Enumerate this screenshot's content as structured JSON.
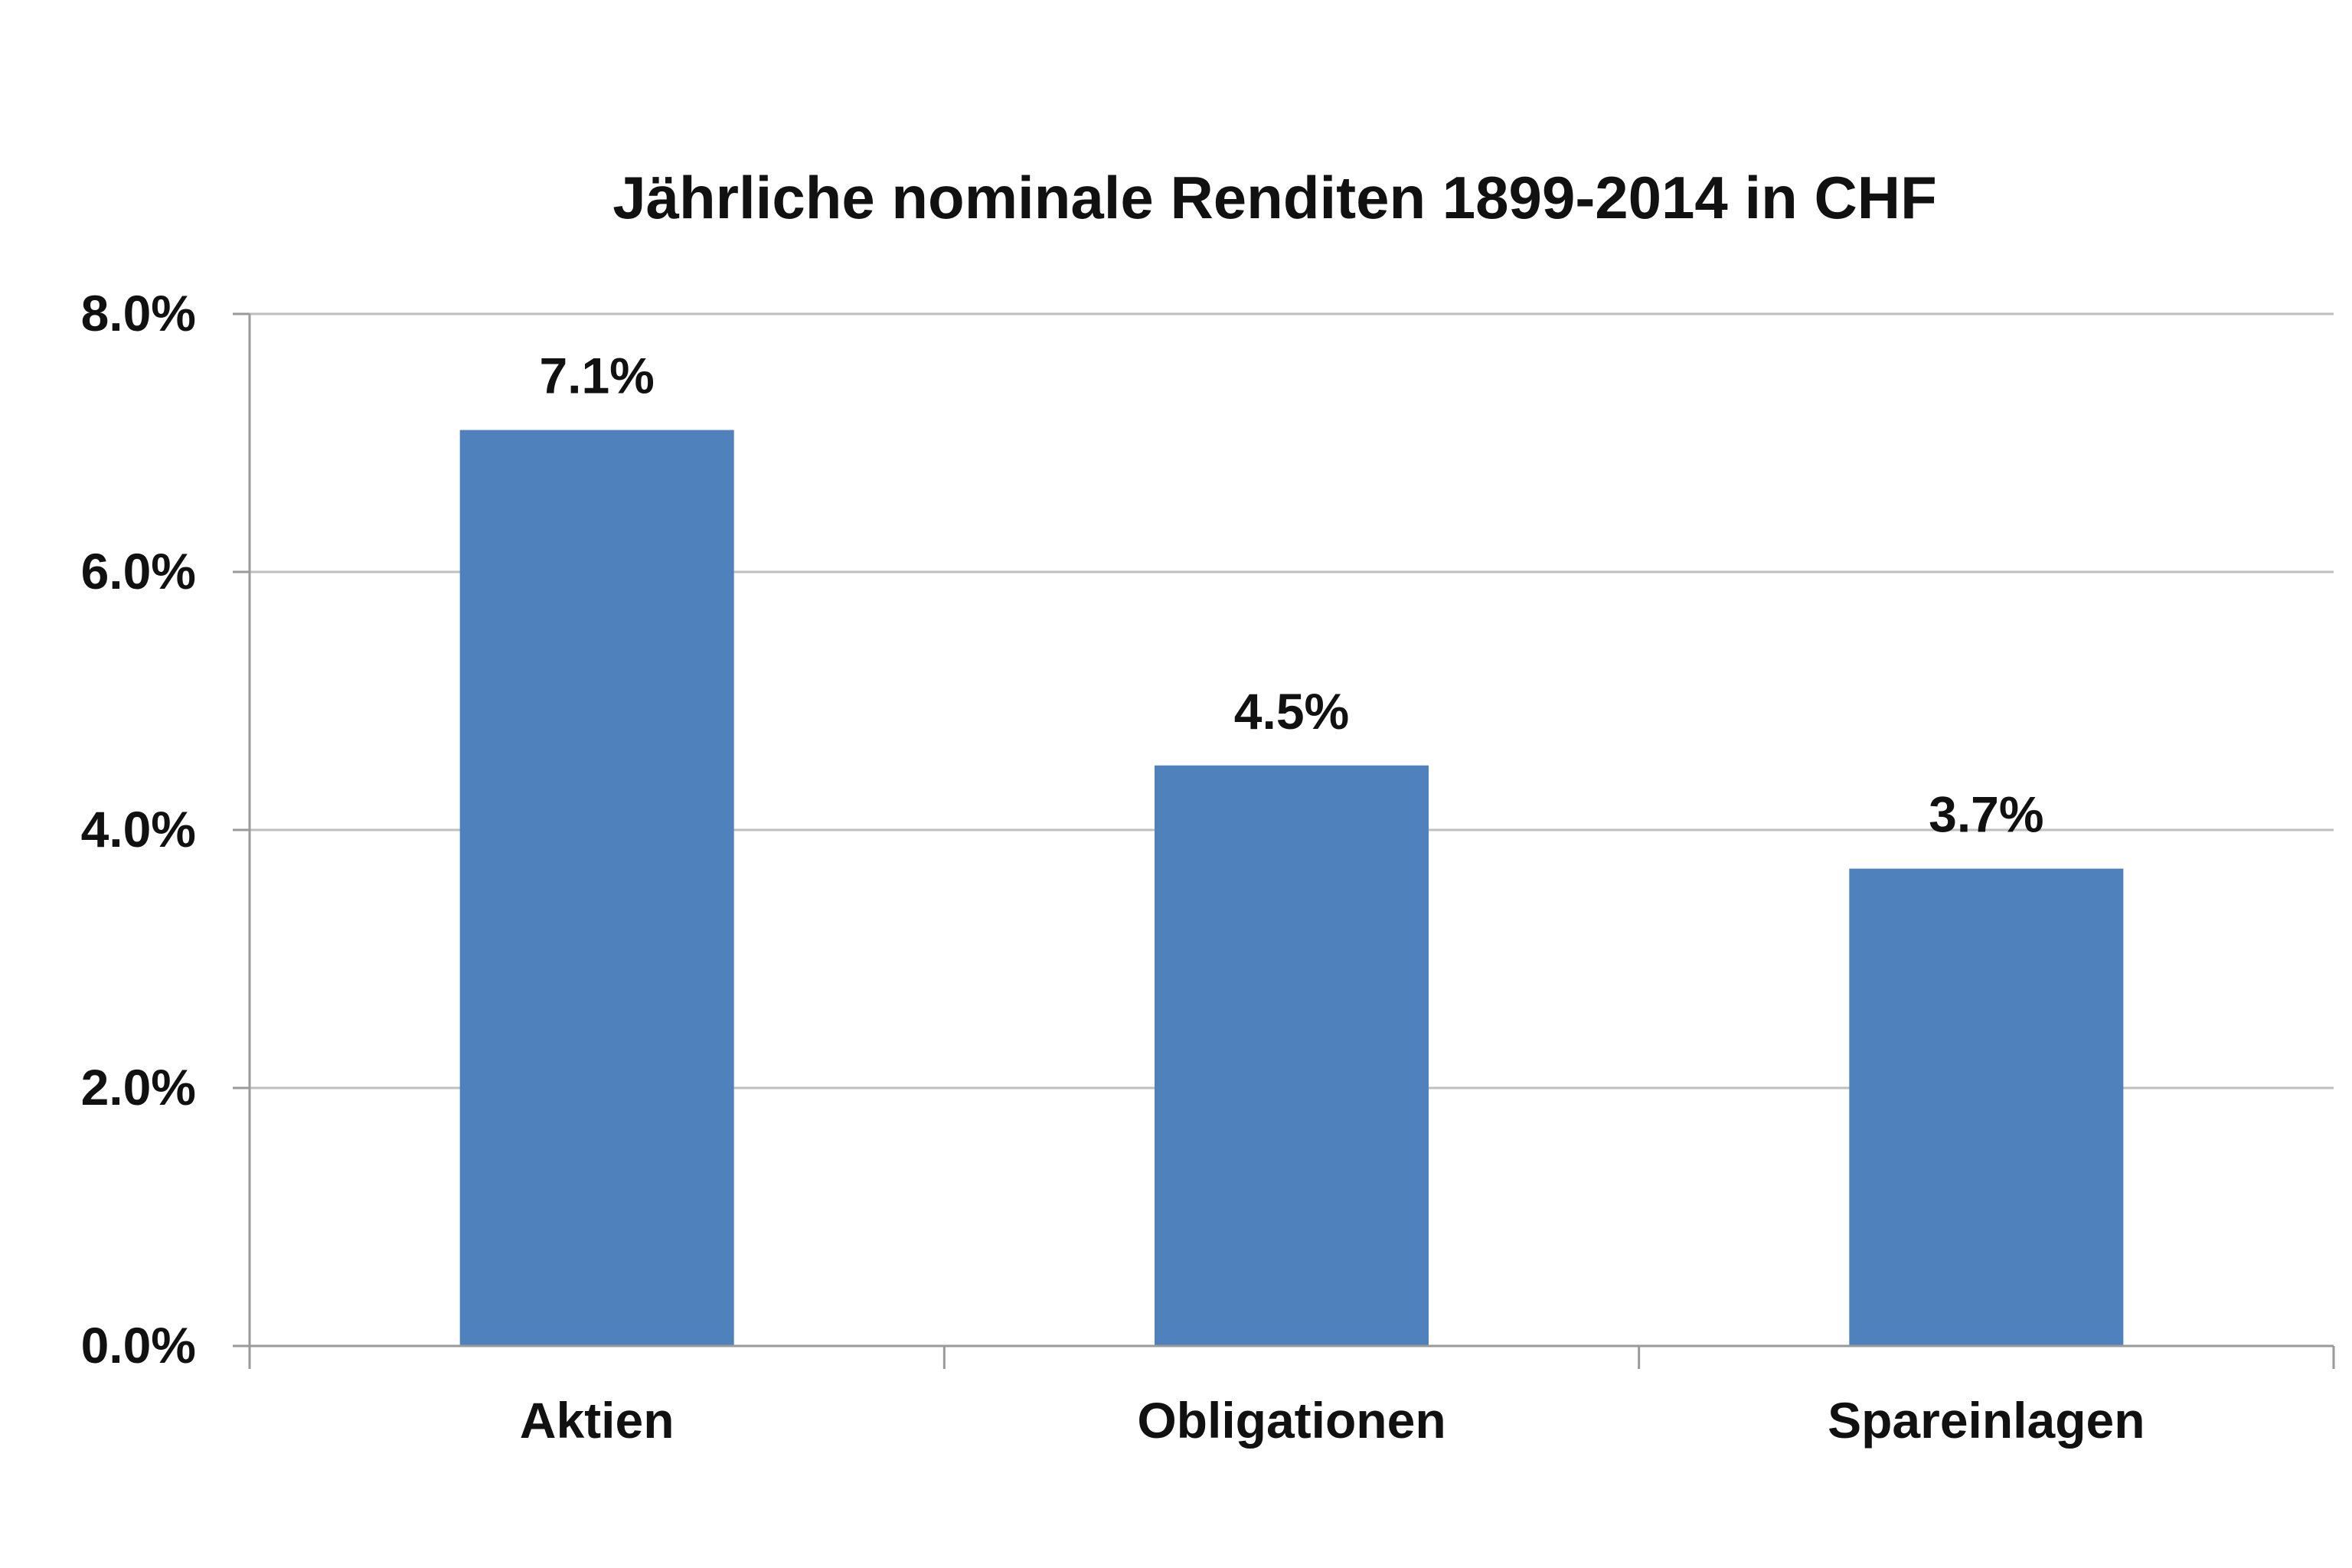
{
  "chart_data": {
    "type": "bar",
    "title": "Jährliche nominale Renditen 1899-2014 in CHF",
    "xlabel": "",
    "ylabel": "",
    "categories": [
      "Aktien",
      "Obligationen",
      "Spareinlagen"
    ],
    "values": [
      7.1,
      4.5,
      3.7
    ],
    "data_labels": [
      "7.1%",
      "4.5%",
      "3.7%"
    ],
    "ylim": [
      0,
      8
    ],
    "yticks": [
      0,
      2,
      4,
      6,
      8
    ],
    "ytick_labels": [
      "0.0%",
      "2.0%",
      "4.0%",
      "6.0%",
      "8.0%"
    ],
    "grid": true,
    "legend": "none",
    "colors": {
      "bar": "#4F81BD",
      "grid": "#BFBFBF",
      "axis": "#9A9A9A",
      "text": "#111111"
    }
  }
}
